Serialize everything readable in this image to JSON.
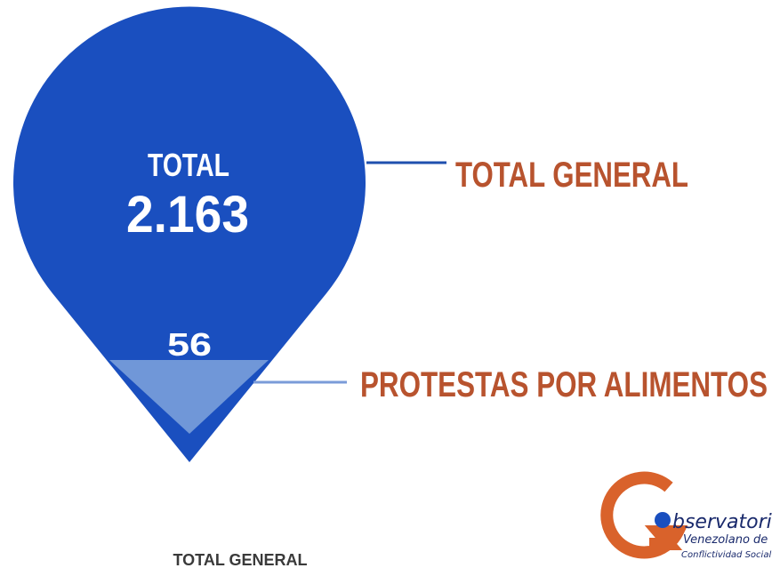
{
  "main": {
    "total_label": "TOTAL",
    "total_value": "2.163",
    "total_caption": "TOTAL GENERAL"
  },
  "subset": {
    "value": "56",
    "caption": "PROTESTAS POR ALIMENTOS"
  },
  "logo": {
    "name": "bservatorio",
    "line1": "Venezolano de",
    "line2": "Conflictividad Social"
  },
  "footer": "TOTAL GENERAL"
}
